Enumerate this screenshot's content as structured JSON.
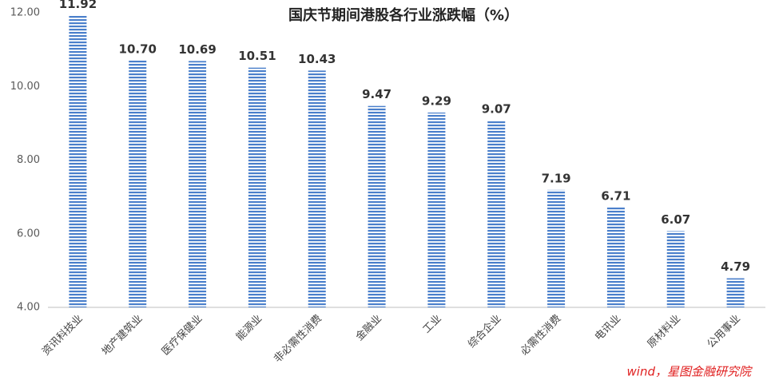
{
  "chart_data": {
    "type": "bar",
    "title": "国庆节期间港股各行业涨跌幅（%）",
    "categories": [
      "资讯科技业",
      "地产建筑业",
      "医疗保健业",
      "能源业",
      "非必需性消费",
      "金融业",
      "工业",
      "综合企业",
      "必需性消费",
      "电讯业",
      "原材料业",
      "公用事业"
    ],
    "values": [
      11.92,
      10.7,
      10.69,
      10.51,
      10.43,
      9.47,
      9.29,
      9.07,
      7.19,
      6.71,
      6.07,
      4.79
    ],
    "value_labels": [
      "11.92",
      "10.70",
      "10.69",
      "10.51",
      "10.43",
      "9.47",
      "9.29",
      "9.07",
      "7.19",
      "6.71",
      "6.07",
      "4.79"
    ],
    "color": "#4a7fcb",
    "ylim": [
      4,
      12
    ],
    "yticks": [
      {
        "value": 4,
        "label": "4.00"
      },
      {
        "value": 6,
        "label": "6.00"
      },
      {
        "value": 8,
        "label": "8.00"
      },
      {
        "value": 10,
        "label": "10.00"
      },
      {
        "value": 12,
        "label": "12.00"
      }
    ],
    "grid": false,
    "source": "wind，星图金融研究院"
  }
}
